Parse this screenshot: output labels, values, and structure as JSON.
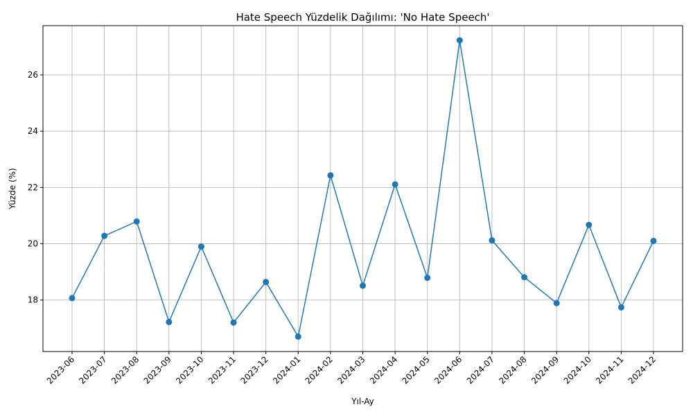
{
  "chart_data": {
    "type": "line",
    "title": "Hate Speech Yüzdelik Dağılımı: 'No Hate Speech'",
    "xlabel": "Yıl-Ay",
    "ylabel": "Yüzde (%)",
    "categories": [
      "2023-06",
      "2023-07",
      "2023-08",
      "2023-09",
      "2023-10",
      "2023-11",
      "2023-12",
      "2024-01",
      "2024-02",
      "2024-03",
      "2024-04",
      "2024-05",
      "2024-06",
      "2024-07",
      "2024-08",
      "2024-09",
      "2024-10",
      "2024-11",
      "2024-12"
    ],
    "values": [
      18.07,
      20.28,
      20.79,
      17.22,
      19.9,
      17.2,
      18.64,
      16.7,
      22.43,
      18.51,
      22.11,
      18.79,
      27.23,
      20.12,
      18.81,
      17.89,
      20.67,
      17.74,
      20.1
    ],
    "yticks": [
      18,
      20,
      22,
      24,
      26
    ],
    "ylim": [
      16.17,
      27.75
    ],
    "grid": true,
    "line_color": "#1f77b4"
  }
}
